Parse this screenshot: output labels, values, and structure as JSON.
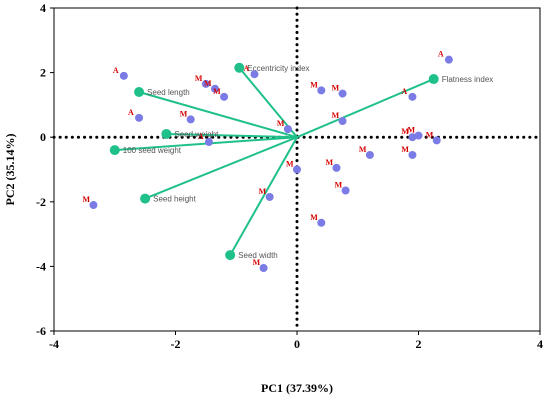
{
  "chart_data": {
    "type": "scatter",
    "title": "",
    "xlabel": "PC1 (37.39%)",
    "ylabel": "PC2 (35.14%)",
    "xlim": [
      -4,
      4
    ],
    "ylim": [
      -6,
      4
    ],
    "x_ticks": [
      "-4",
      "-2",
      "0",
      "2",
      "4"
    ],
    "y_ticks": [
      "4",
      "2",
      "0",
      "-2",
      "-4",
      "-6"
    ],
    "grid": false,
    "reference_lines": "dotted lines at x = 0 and y = 0",
    "colors": {
      "points": "#7b7be6",
      "loadings": "#1fc08a",
      "point_labels": "#d40000",
      "loading_labels": "#555555"
    },
    "loadings": [
      {
        "name": "Eccentricity index",
        "x": -0.95,
        "y": 2.15
      },
      {
        "name": "Flatness index",
        "x": 2.25,
        "y": 1.8
      },
      {
        "name": "Seed length",
        "x": -2.6,
        "y": 1.4
      },
      {
        "name": "Seed weight",
        "x": -2.15,
        "y": 0.1
      },
      {
        "name": "100 seed weight",
        "x": -3.0,
        "y": -0.4
      },
      {
        "name": "Seed height",
        "x": -2.5,
        "y": -1.9
      },
      {
        "name": "Seed width",
        "x": -1.1,
        "y": -3.65
      }
    ],
    "points": [
      {
        "x": -2.85,
        "y": 1.9,
        "label": "A"
      },
      {
        "x": -1.5,
        "y": 1.65,
        "label": "M"
      },
      {
        "x": -1.35,
        "y": 1.5,
        "label": "M"
      },
      {
        "x": -1.2,
        "y": 1.25,
        "label": "M"
      },
      {
        "x": -0.7,
        "y": 1.95,
        "label": "A"
      },
      {
        "x": -2.6,
        "y": 0.6,
        "label": "A"
      },
      {
        "x": -1.75,
        "y": 0.55,
        "label": "M"
      },
      {
        "x": -1.45,
        "y": -0.15,
        "label": "A"
      },
      {
        "x": -0.15,
        "y": 0.25,
        "label": "M"
      },
      {
        "x": -3.35,
        "y": -2.1,
        "label": "M"
      },
      {
        "x": -0.45,
        "y": -1.85,
        "label": "M"
      },
      {
        "x": -0.55,
        "y": -4.05,
        "label": "M"
      },
      {
        "x": 0.0,
        "y": -1.0,
        "label": "M"
      },
      {
        "x": 0.4,
        "y": 1.45,
        "label": "M"
      },
      {
        "x": 0.75,
        "y": 1.35,
        "label": "M"
      },
      {
        "x": 0.75,
        "y": 0.5,
        "label": "M"
      },
      {
        "x": 0.65,
        "y": -0.95,
        "label": "M"
      },
      {
        "x": 0.8,
        "y": -1.65,
        "label": "M"
      },
      {
        "x": 0.4,
        "y": -2.65,
        "label": "M"
      },
      {
        "x": 1.2,
        "y": -0.55,
        "label": "M"
      },
      {
        "x": 1.9,
        "y": 1.25,
        "label": "A"
      },
      {
        "x": 1.9,
        "y": 0.0,
        "label": "M"
      },
      {
        "x": 2.0,
        "y": 0.05,
        "label": "M"
      },
      {
        "x": 1.9,
        "y": -0.55,
        "label": "M"
      },
      {
        "x": 2.3,
        "y": -0.1,
        "label": "M"
      },
      {
        "x": 2.5,
        "y": 2.4,
        "label": "A"
      }
    ]
  }
}
